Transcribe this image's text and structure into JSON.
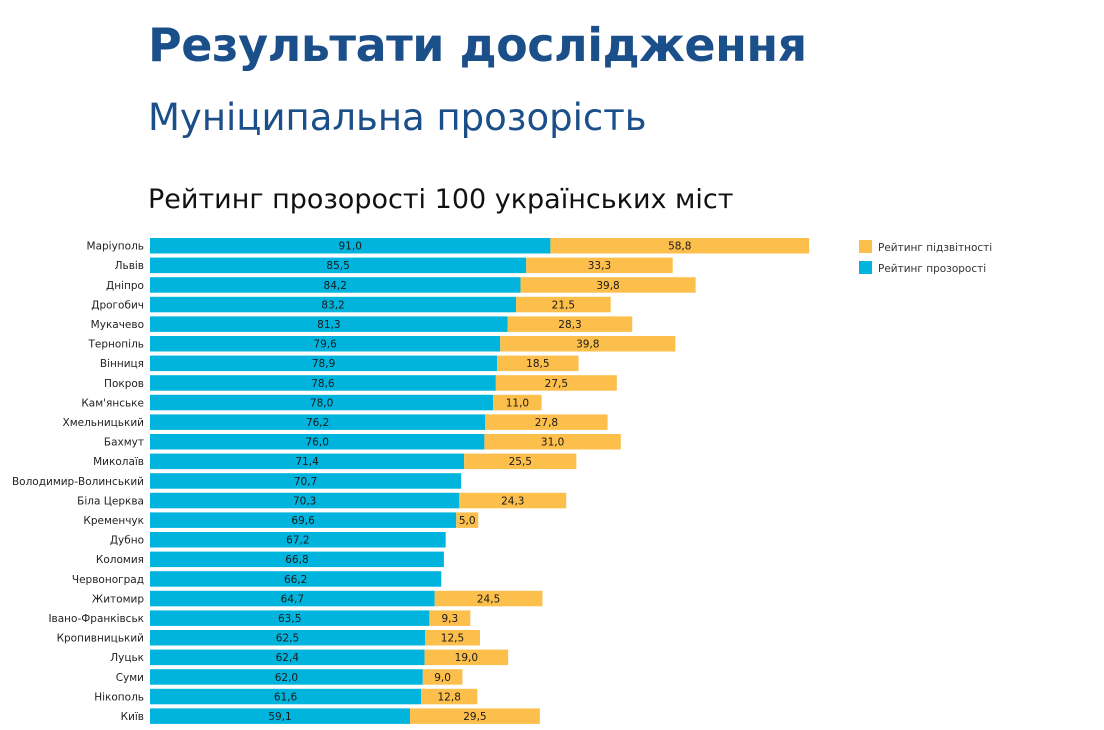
{
  "header": {
    "title": "Результати дослідження",
    "subtitle": "Муніципальна прозорість"
  },
  "chart_data": {
    "type": "bar",
    "orientation": "horizontal",
    "stacked": true,
    "title": "Рейтинг прозорості 100 українських міст",
    "categories": [
      "Маріуполь",
      "Львів",
      "Дніпро",
      "Дрогобич",
      "Мукачево",
      "Тернопіль",
      "Вінниця",
      "Покров",
      "Кам'янське",
      "Хмельницький",
      "Бахмут",
      "Миколаїв",
      "Володимир-Волинський",
      "Біла Церква",
      "Кременчук",
      "Дубно",
      "Коломия",
      "Червоноград",
      "Житомир",
      "Івано-Франківськ",
      "Кропивницький",
      "Луцьк",
      "Суми",
      "Нікополь",
      "Київ"
    ],
    "series": [
      {
        "name": "Рейтинг прозорості",
        "color": "#00b4dd",
        "values": [
          91.0,
          85.5,
          84.2,
          83.2,
          81.3,
          79.6,
          78.9,
          78.6,
          78.0,
          76.2,
          76.0,
          71.4,
          70.7,
          70.3,
          69.6,
          67.2,
          66.8,
          66.2,
          64.7,
          63.5,
          62.5,
          62.4,
          62.0,
          61.6,
          59.1
        ],
        "labels": [
          "91,0",
          "85,5",
          "84,2",
          "83,2",
          "81,3",
          "79,6",
          "78,9",
          "78,6",
          "78,0",
          "76,2",
          "76,0",
          "71,4",
          "70,7",
          "70,3",
          "69,6",
          "67,2",
          "66,8",
          "66,2",
          "64,7",
          "63,5",
          "62,5",
          "62,4",
          "62,0",
          "61,6",
          "59,1"
        ]
      },
      {
        "name": "Рейтинг підзвітності",
        "color": "#fdbf4b",
        "values": [
          58.8,
          33.3,
          39.8,
          21.5,
          28.3,
          39.8,
          18.5,
          27.5,
          11.0,
          27.8,
          31.0,
          25.5,
          null,
          24.3,
          5.0,
          null,
          null,
          null,
          24.5,
          9.3,
          12.5,
          19.0,
          9.0,
          12.8,
          29.5
        ],
        "labels": [
          "58,8",
          "33,3",
          "39,8",
          "21,5",
          "28,3",
          "39,8",
          "18,5",
          "27,5",
          "11,0",
          "27,8",
          "31,0",
          "25,5",
          null,
          "24,3",
          "5,0",
          null,
          null,
          null,
          "24,5",
          "9,3",
          "12,5",
          "19,0",
          "9,0",
          "12,8",
          "29,5"
        ]
      }
    ],
    "legend": {
      "position": "top-right",
      "items": [
        {
          "label": "Рейтинг підзвітності",
          "color": "#fdbf4b"
        },
        {
          "label": "Рейтинг прозорості",
          "color": "#00b4dd"
        }
      ]
    },
    "grid": false
  }
}
